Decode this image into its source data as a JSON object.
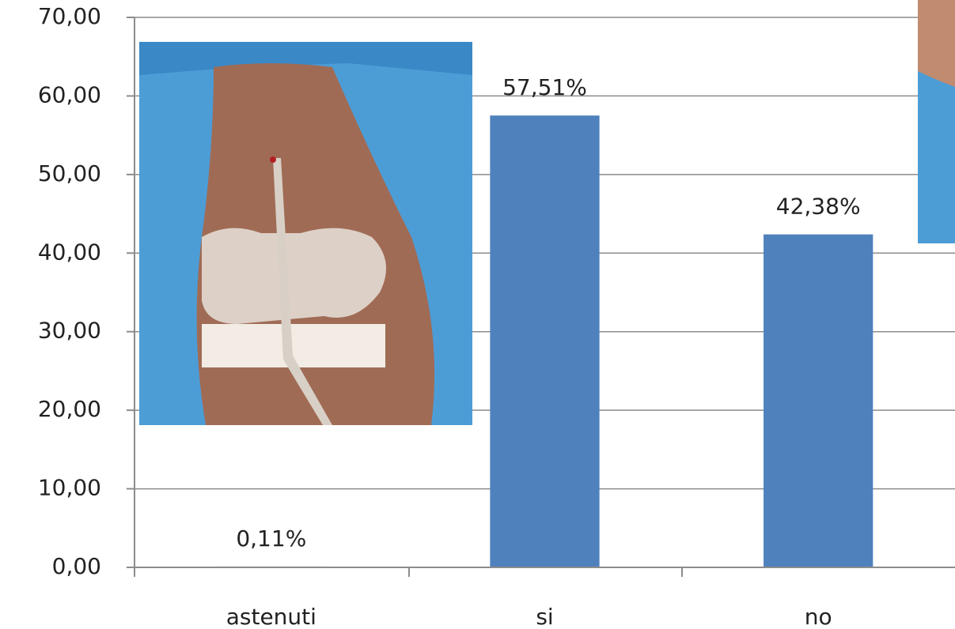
{
  "chart_data": {
    "type": "bar",
    "categories": [
      "astenuti",
      "si",
      "no"
    ],
    "values": [
      0.11,
      57.51,
      42.38
    ],
    "value_labels": [
      "0,11%",
      "57,51%",
      "42,38%"
    ],
    "color": "#4f81bd",
    "ylim": [
      0,
      70
    ],
    "yticks": [
      {
        "value": 0,
        "label": "0,00"
      },
      {
        "value": 10,
        "label": "10,00"
      },
      {
        "value": 20,
        "label": "20,00"
      },
      {
        "value": 30,
        "label": "30,00"
      },
      {
        "value": 40,
        "label": "40,00"
      },
      {
        "value": 50,
        "label": "50,00"
      },
      {
        "value": 60,
        "label": "60,00"
      },
      {
        "value": 70,
        "label": "70,00"
      }
    ],
    "grid": true
  }
}
